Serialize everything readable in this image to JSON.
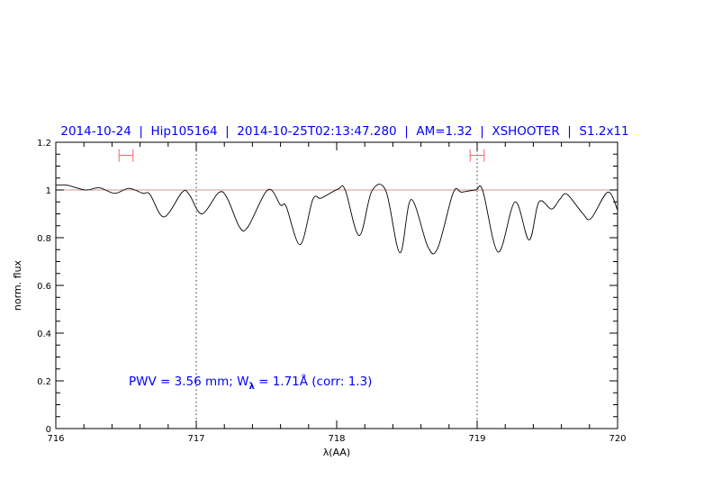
{
  "chart_data": {
    "type": "line",
    "title": "2014-10-24  |  Hip105164  |  2014-10-25T02:13:47.280  |  AM=1.32  |  XSHOOTER  |  S1.2x11",
    "xlabel": "λ(AA)",
    "ylabel": "norm. flux",
    "xlim": [
      716,
      720
    ],
    "ylim": [
      0,
      1.2
    ],
    "x_ticks": [
      "716",
      "717",
      "718",
      "719",
      "720"
    ],
    "y_ticks": [
      "0",
      "0.2",
      "0.4",
      "0.6",
      "0.8",
      "1",
      "1.2"
    ],
    "grid": false,
    "annotation": {
      "text_pre": "PWV = 3.56 mm; W",
      "subscript": "λ",
      "text_post": " = 1.71Å (corr: 1.3)",
      "color": "#0000ff"
    },
    "reference_line": {
      "y": 1.0,
      "color": "#d89090"
    },
    "marker_lines": [
      717,
      719
    ],
    "ranges": [
      {
        "x0": 716.45,
        "x1": 716.55,
        "y": 1.145,
        "color": "#ff6060"
      },
      {
        "x0": 718.95,
        "x1": 719.05,
        "y": 1.145,
        "color": "#ff6060"
      }
    ],
    "series": [
      {
        "color": "#000000",
        "x": [
          716.0,
          716.08,
          716.21,
          716.31,
          716.42,
          716.52,
          716.62,
          716.67,
          716.77,
          716.9,
          716.95,
          717.04,
          717.16,
          717.22,
          717.31,
          717.37,
          717.51,
          717.6,
          717.64,
          717.74,
          717.83,
          717.89,
          718.01,
          718.06,
          718.16,
          718.25,
          718.35,
          718.45,
          718.53,
          718.65,
          718.72,
          718.83,
          718.89,
          718.99,
          719.04,
          719.15,
          719.27,
          719.37,
          719.44,
          719.53,
          719.59,
          719.64,
          719.75,
          719.81,
          719.93,
          720.0
        ],
        "y": [
          1.02,
          1.02,
          1.0,
          1.009,
          0.986,
          1.007,
          0.986,
          0.982,
          0.887,
          0.991,
          0.981,
          0.9,
          0.989,
          0.966,
          0.843,
          0.847,
          1.001,
          0.937,
          0.931,
          0.771,
          0.96,
          0.966,
          1.004,
          1.001,
          0.809,
          0.995,
          0.997,
          0.737,
          0.96,
          0.761,
          0.757,
          0.989,
          0.991,
          1.0,
          0.997,
          0.74,
          0.95,
          0.79,
          0.95,
          0.92,
          0.962,
          0.982,
          0.903,
          0.88,
          0.991,
          0.916
        ]
      }
    ]
  }
}
